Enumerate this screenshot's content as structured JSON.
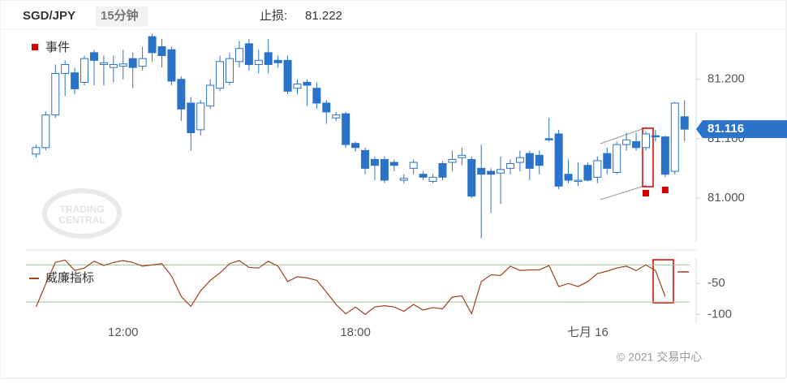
{
  "header": {
    "symbol": "SGD/JPY",
    "interval": "15分钟",
    "stop_label": "止损:",
    "stop_value": 81.222
  },
  "watermark": [
    "TRADING",
    "CENTRAL"
  ],
  "copyright": "© 2021 交易中心",
  "chart_data": [
    {
      "type": "candlestick",
      "color": "#2b73c9",
      "categories": [
        null,
        null,
        null,
        null,
        null,
        null,
        null,
        null,
        null,
        "12:00",
        null,
        null,
        null,
        null,
        null,
        null,
        null,
        null,
        null,
        null,
        null,
        null,
        null,
        null,
        null,
        null,
        null,
        null,
        null,
        null,
        null,
        null,
        null,
        "18:00",
        null,
        null,
        null,
        null,
        null,
        null,
        null,
        null,
        null,
        null,
        null,
        null,
        null,
        null,
        null,
        null,
        null,
        null,
        null,
        null,
        null,
        null,
        null,
        "七月 16",
        null,
        null,
        null,
        null,
        null,
        null,
        null,
        null,
        null,
        null
      ],
      "open": [
        81.074,
        81.085,
        81.14,
        81.21,
        81.211,
        81.195,
        81.245,
        81.225,
        81.22,
        81.222,
        81.235,
        81.222,
        81.272,
        81.255,
        81.25,
        81.2,
        81.16,
        81.115,
        81.155,
        81.185,
        81.195,
        81.23,
        81.26,
        81.225,
        81.245,
        81.232,
        81.232,
        81.185,
        81.195,
        81.185,
        81.16,
        81.135,
        81.142,
        81.092,
        81.08,
        81.065,
        81.065,
        81.06,
        81.03,
        81.05,
        81.04,
        81.028,
        81.058,
        81.06,
        81.068,
        81.065,
        81.05,
        81.045,
        81.042,
        81.05,
        81.06,
        81.075,
        81.072,
        81.1,
        81.108,
        81.04,
        81.028,
        81.055,
        81.035,
        81.075,
        81.043,
        81.09,
        81.095,
        81.085,
        81.105,
        81.103,
        81.045,
        81.137
      ],
      "high": [
        81.09,
        81.146,
        81.225,
        81.232,
        81.22,
        81.24,
        81.25,
        81.24,
        81.24,
        81.25,
        81.245,
        81.255,
        81.277,
        81.268,
        81.255,
        81.205,
        81.17,
        81.165,
        81.2,
        81.24,
        81.245,
        81.265,
        81.268,
        81.25,
        81.268,
        81.24,
        81.24,
        81.2,
        81.2,
        81.195,
        81.165,
        81.145,
        81.145,
        81.095,
        81.085,
        81.07,
        81.07,
        81.065,
        81.04,
        81.065,
        81.045,
        81.04,
        81.062,
        81.08,
        81.085,
        81.07,
        81.09,
        81.05,
        81.07,
        81.065,
        81.08,
        81.08,
        81.08,
        81.135,
        81.115,
        81.065,
        81.06,
        81.06,
        81.07,
        81.085,
        81.095,
        81.11,
        81.11,
        81.112,
        81.115,
        81.105,
        81.162,
        81.165
      ],
      "low": [
        81.068,
        81.08,
        81.135,
        81.172,
        81.175,
        81.19,
        81.19,
        81.19,
        81.195,
        81.2,
        81.185,
        81.215,
        81.23,
        81.22,
        81.19,
        81.13,
        81.08,
        81.105,
        81.15,
        81.18,
        81.19,
        81.22,
        81.215,
        81.21,
        81.21,
        81.22,
        81.175,
        81.175,
        81.155,
        81.15,
        81.125,
        81.13,
        81.085,
        81.078,
        81.04,
        81.03,
        81.025,
        81.045,
        81.025,
        81.04,
        81.03,
        81.025,
        81.03,
        81.045,
        81.055,
        81.0,
        80.932,
        80.975,
        80.99,
        81.04,
        81.045,
        81.03,
        81.04,
        81.095,
        81.015,
        81.025,
        81.02,
        81.028,
        81.025,
        81.04,
        81.04,
        81.08,
        81.08,
        81.08,
        81.095,
        81.035,
        81.04,
        81.095
      ],
      "close": [
        81.085,
        81.14,
        81.21,
        81.225,
        81.184,
        81.235,
        81.232,
        81.228,
        81.225,
        81.226,
        81.22,
        81.235,
        81.245,
        81.24,
        81.197,
        81.15,
        81.11,
        81.16,
        81.19,
        81.23,
        81.235,
        81.252,
        81.225,
        81.232,
        81.225,
        81.228,
        81.18,
        81.192,
        81.19,
        81.16,
        81.145,
        81.14,
        81.09,
        81.085,
        81.05,
        81.055,
        81.03,
        81.055,
        81.033,
        81.06,
        81.035,
        81.035,
        81.035,
        81.065,
        81.072,
        81.003,
        81.04,
        81.04,
        81.048,
        81.058,
        81.068,
        81.05,
        81.055,
        81.098,
        81.02,
        81.03,
        81.03,
        81.03,
        81.063,
        81.05,
        81.09,
        81.098,
        81.085,
        81.108,
        81.103,
        81.04,
        81.16,
        81.116
      ],
      "ylim": [
        80.926,
        81.279
      ],
      "yticks": [
        {
          "value": 81.0,
          "label": "81.000"
        },
        {
          "value": 81.1,
          "label": "81.100"
        },
        {
          "value": 81.2,
          "label": "81.200"
        }
      ],
      "events": {
        "name": "事件",
        "color": "#d40000",
        "indices": [
          63,
          65
        ]
      }
    },
    {
      "type": "line",
      "series": [
        {
          "name": "威廉指标",
          "color": "#a0401c",
          "values": [
            -88,
            -51,
            -16,
            -12,
            -29,
            -25,
            -14,
            -21,
            -16,
            -13,
            -16,
            -22,
            -20,
            -18,
            -38,
            -71,
            -87,
            -62,
            -45,
            -33,
            -18,
            -13,
            -24,
            -25,
            -14,
            -22,
            -47,
            -39,
            -41,
            -45,
            -64,
            -84,
            -99,
            -88,
            -100,
            -88,
            -86,
            -88,
            -95,
            -84,
            -93,
            -89,
            -91,
            -72,
            -70,
            -99,
            -47,
            -36,
            -37,
            -22,
            -29,
            -28,
            -28,
            -21,
            -55,
            -50,
            -55,
            -47,
            -34,
            -30,
            -25,
            -22,
            -29,
            -20,
            -29,
            -71,
            null,
            null
          ]
        }
      ],
      "ylim": [
        -114,
        -9
      ],
      "yticks": [
        -100,
        -50
      ],
      "levels": [
        -20,
        -80
      ],
      "level_color": "#9cc49c"
    }
  ]
}
